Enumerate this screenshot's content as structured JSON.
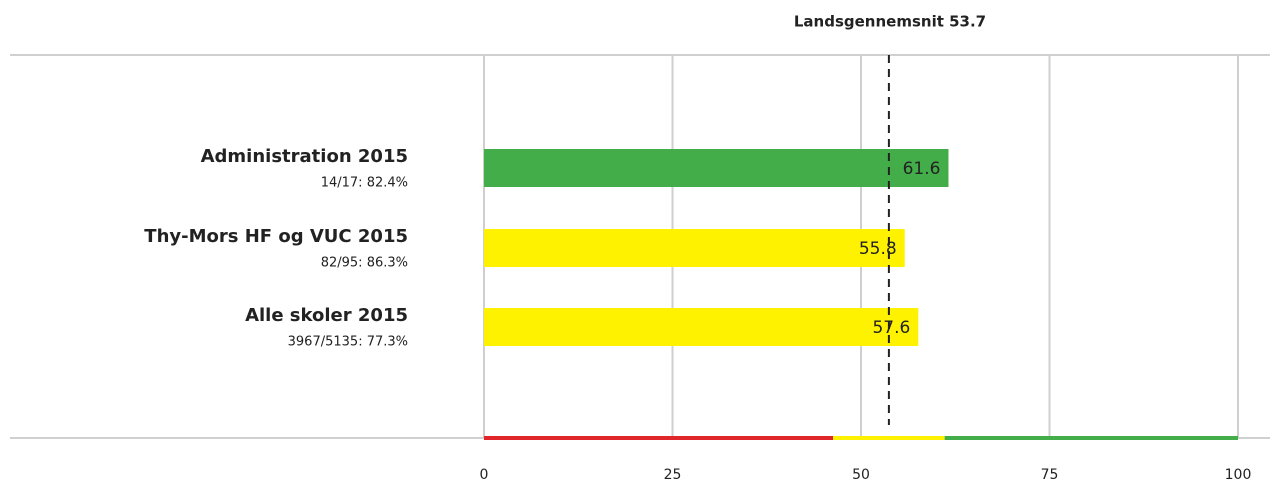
{
  "chart_data": {
    "type": "bar",
    "orientation": "horizontal",
    "categories": [
      "Administration 2015",
      "Thy-Mors HF og VUC 2015",
      "Alle skoler 2015"
    ],
    "sublabels": [
      "14/17: 82.4%",
      "82/95: 86.3%",
      "3967/5135: 77.3%"
    ],
    "values": [
      61.6,
      55.8,
      57.6
    ],
    "colors": [
      "#43ad4a",
      "#fff200",
      "#fff200"
    ],
    "label_colors": [
      "#ffffff",
      "#222222",
      "#222222"
    ],
    "xlim": [
      0,
      100
    ],
    "xticks": [
      0,
      25,
      50,
      75,
      100
    ],
    "grid": true,
    "reference": {
      "value": 53.7,
      "label": "Landsgennemsnit 53.7"
    },
    "band_edges": [
      0,
      46.3,
      61.1,
      100
    ],
    "band_colors": [
      "#e0262b",
      "#fff200",
      "#43ad4a"
    ]
  }
}
